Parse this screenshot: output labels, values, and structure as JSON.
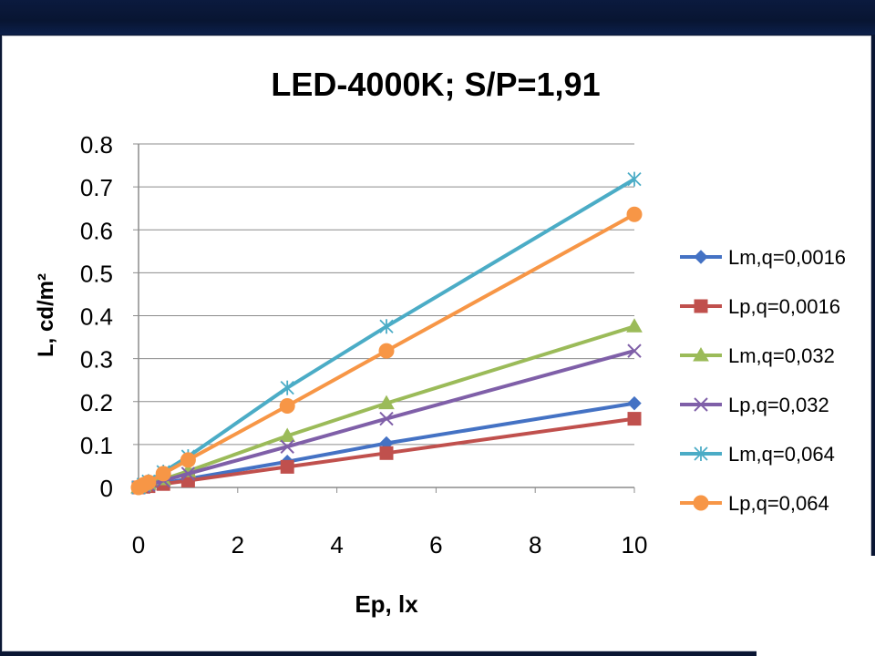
{
  "chart_data": {
    "type": "line",
    "title": "LED-4000K; S/P=1,91",
    "xlabel": "Ep, lx",
    "ylabel": "L, cd/m²",
    "xlim": [
      0,
      10
    ],
    "ylim": [
      0,
      0.8
    ],
    "x_ticks": [
      "0",
      "2",
      "4",
      "6",
      "8",
      "10"
    ],
    "y_ticks": [
      "0",
      "0.1",
      "0.2",
      "0.3",
      "0.4",
      "0.5",
      "0.6",
      "0.7",
      "0.8"
    ],
    "grid": "horizontal",
    "legend_position": "right",
    "x": [
      0,
      0.1,
      0.2,
      0.5,
      1,
      3,
      5,
      10
    ],
    "series": [
      {
        "name": "Lm,q=0,0016",
        "color": "#4472C4",
        "marker": "diamond",
        "values": [
          0,
          0.002,
          0.004,
          0.01,
          0.02,
          0.06,
          0.103,
          0.196
        ]
      },
      {
        "name": "Lp,q=0,0016",
        "color": "#C0504D",
        "marker": "square",
        "values": [
          0,
          0.0016,
          0.003,
          0.008,
          0.016,
          0.048,
          0.08,
          0.16
        ]
      },
      {
        "name": "Lm,q=0,032",
        "color": "#9BBB59",
        "marker": "triangle",
        "values": [
          0,
          0.004,
          0.008,
          0.019,
          0.038,
          0.12,
          0.196,
          0.375
        ]
      },
      {
        "name": "Lp,q=0,032",
        "color": "#7F5FA8",
        "marker": "x",
        "values": [
          0,
          0.003,
          0.006,
          0.016,
          0.032,
          0.095,
          0.16,
          0.318
        ]
      },
      {
        "name": "Lm,q=0,064",
        "color": "#4BACC6",
        "marker": "star",
        "values": [
          0,
          0.007,
          0.014,
          0.036,
          0.072,
          0.232,
          0.375,
          0.718
        ]
      },
      {
        "name": "Lp,q=0,064",
        "color": "#F79646",
        "marker": "circle",
        "values": [
          0,
          0.006,
          0.012,
          0.032,
          0.064,
          0.19,
          0.318,
          0.636
        ]
      }
    ]
  }
}
